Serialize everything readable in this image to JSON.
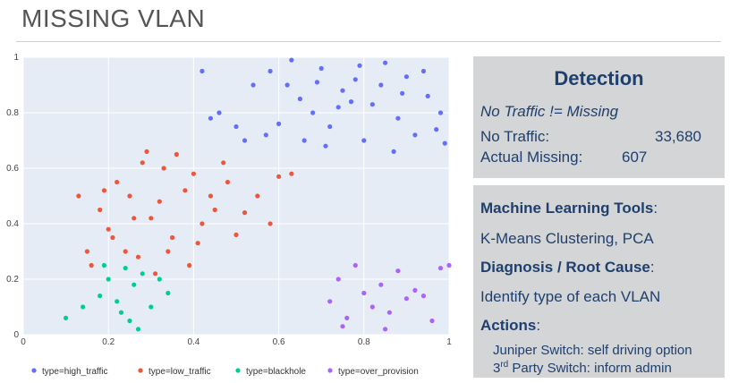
{
  "slide": {
    "title": "MISSING VLAN"
  },
  "detection": {
    "title": "Detection",
    "subtitle": "No Traffic != Missing",
    "no_traffic_label": "No Traffic:",
    "no_traffic_value": "33,680",
    "actual_missing_label": "Actual Missing:",
    "actual_missing_value": "607"
  },
  "analysis": {
    "tools_heading": "Machine Learning Tools",
    "tools_colon": ":",
    "tools_text": "K-Means Clustering, PCA",
    "diagnosis_heading": "Diagnosis / Root Cause",
    "diagnosis_colon": ":",
    "diagnosis_text": "Identify type of each VLAN",
    "actions_heading": "Actions",
    "actions_colon": ":",
    "action_1": "Juniper Switch: self driving option",
    "action_2_prefix": "3",
    "action_2_sup": "rd",
    "action_2_rest": " Party Switch: inform admin"
  },
  "chart_data": {
    "type": "scatter",
    "title": "",
    "xlabel": "",
    "ylabel": "",
    "xlim": [
      0,
      1
    ],
    "ylim": [
      0,
      1
    ],
    "x_ticks": [
      "0",
      "0.2",
      "0.4",
      "0.6",
      "0.8",
      "1"
    ],
    "y_ticks": [
      "0",
      "0.2",
      "0.4",
      "0.6",
      "0.8",
      "1"
    ],
    "grid": true,
    "legend_position": "bottom",
    "series": [
      {
        "name": "type=high_traffic",
        "color": "#636efa",
        "x": [
          0.58,
          0.62,
          0.65,
          0.68,
          0.7,
          0.72,
          0.75,
          0.78,
          0.8,
          0.82,
          0.85,
          0.88,
          0.9,
          0.92,
          0.95,
          0.98,
          0.6,
          0.66,
          0.74,
          0.84,
          0.94,
          0.63,
          0.71,
          0.79,
          0.87,
          0.97,
          0.69,
          0.77,
          0.89,
          0.99,
          0.57,
          0.5,
          0.46,
          0.54,
          0.52,
          0.42,
          0.44
        ],
        "y": [
          0.95,
          0.9,
          0.85,
          0.8,
          0.96,
          0.75,
          0.88,
          0.92,
          0.7,
          0.83,
          0.98,
          0.78,
          0.93,
          0.72,
          0.86,
          0.8,
          0.76,
          0.7,
          0.82,
          0.9,
          0.95,
          0.99,
          0.68,
          0.97,
          0.66,
          0.74,
          0.91,
          0.84,
          0.87,
          0.69,
          0.72,
          0.75,
          0.8,
          0.9,
          0.7,
          0.95,
          0.78
        ]
      },
      {
        "name": "type=low_traffic",
        "color": "#ef553b",
        "x": [
          0.15,
          0.18,
          0.2,
          0.22,
          0.25,
          0.28,
          0.3,
          0.32,
          0.35,
          0.38,
          0.4,
          0.42,
          0.45,
          0.48,
          0.5,
          0.55,
          0.6,
          0.16,
          0.24,
          0.33,
          0.41,
          0.52,
          0.27,
          0.36,
          0.44,
          0.21,
          0.31,
          0.47,
          0.58,
          0.63,
          0.13,
          0.19,
          0.29,
          0.39,
          0.26,
          0.34
        ],
        "y": [
          0.3,
          0.45,
          0.38,
          0.55,
          0.5,
          0.62,
          0.42,
          0.48,
          0.35,
          0.52,
          0.58,
          0.4,
          0.45,
          0.55,
          0.36,
          0.5,
          0.57,
          0.25,
          0.3,
          0.6,
          0.33,
          0.44,
          0.28,
          0.65,
          0.5,
          0.35,
          0.22,
          0.62,
          0.4,
          0.58,
          0.5,
          0.52,
          0.66,
          0.25,
          0.42,
          0.3
        ]
      },
      {
        "name": "type=blackhole",
        "color": "#00cc96",
        "x": [
          0.1,
          0.14,
          0.18,
          0.2,
          0.22,
          0.24,
          0.25,
          0.26,
          0.28,
          0.3,
          0.32,
          0.34,
          0.19,
          0.23,
          0.27
        ],
        "y": [
          0.06,
          0.1,
          0.14,
          0.2,
          0.12,
          0.24,
          0.05,
          0.18,
          0.22,
          0.1,
          0.2,
          0.15,
          0.25,
          0.08,
          0.02
        ]
      },
      {
        "name": "type=over_provision",
        "color": "#ab63fa",
        "x": [
          0.72,
          0.74,
          0.76,
          0.78,
          0.8,
          0.82,
          0.84,
          0.86,
          0.88,
          0.9,
          0.92,
          0.94,
          0.96,
          0.98,
          1.0,
          0.85,
          0.75
        ],
        "y": [
          0.12,
          0.2,
          0.06,
          0.25,
          0.15,
          0.1,
          0.18,
          0.08,
          0.23,
          0.13,
          0.16,
          0.14,
          0.05,
          0.24,
          0.25,
          0.02,
          0.03
        ]
      }
    ]
  }
}
